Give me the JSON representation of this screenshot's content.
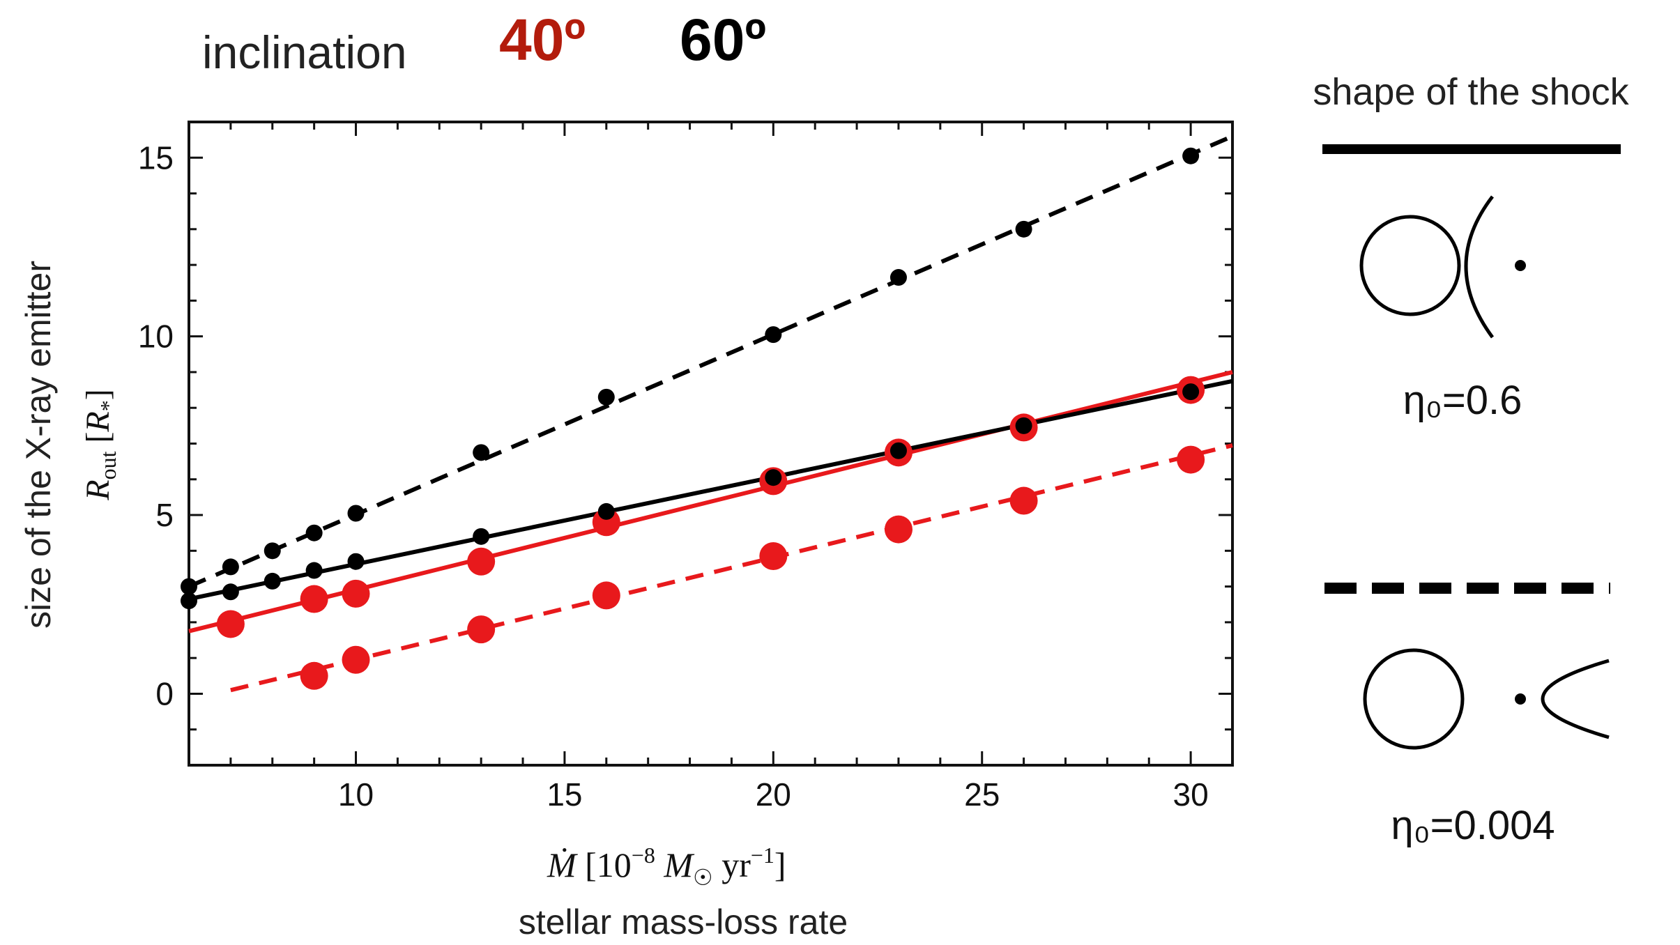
{
  "header": {
    "prefix": "inclination",
    "incl_a": "40º",
    "incl_b": "60º",
    "incl_a_color": "#b31c0c",
    "incl_b_color": "#000000"
  },
  "legend": {
    "title": "shape of the shock",
    "solid_label": "η₀=0.6",
    "dashed_label": "η₀=0.004"
  },
  "chart_data": {
    "type": "scatter",
    "xlabel_main": "Ṁ [10⁻⁸ M☉ yr⁻¹]",
    "xlabel_sub": "stellar mass-loss rate",
    "ylabel_main": "Rout [R*]",
    "ylabel_sub": "size of the X-ray emitter",
    "xlim": [
      6,
      31
    ],
    "ylim": [
      -2,
      16
    ],
    "xticks": [
      "10",
      "15",
      "20",
      "25",
      "30"
    ],
    "yticks": [
      "0",
      "5",
      "10",
      "15"
    ],
    "series": [
      {
        "inclination": "60º",
        "eta0": "η₀=0.004",
        "color": "#000000",
        "line_style": "dashed",
        "x": [
          6,
          7,
          8,
          9,
          10,
          13,
          16,
          20,
          23,
          26,
          30
        ],
        "y": [
          3.0,
          3.55,
          4.0,
          4.5,
          5.05,
          6.75,
          8.3,
          10.05,
          11.65,
          13.0,
          15.05
        ],
        "fit": [
          [
            6,
            3.0
          ],
          [
            31,
            15.6
          ]
        ]
      },
      {
        "inclination": "60º",
        "eta0": "η₀=0.6",
        "color": "#000000",
        "line_style": "solid",
        "x": [
          6,
          7,
          8,
          9,
          10,
          13,
          16,
          20,
          23,
          26,
          30
        ],
        "y": [
          2.6,
          2.85,
          3.15,
          3.45,
          3.7,
          4.4,
          5.1,
          6.05,
          6.8,
          7.5,
          8.45
        ],
        "fit": [
          [
            6,
            2.65
          ],
          [
            31,
            8.75
          ]
        ]
      },
      {
        "inclination": "40º",
        "eta0": "η₀=0.6",
        "color": "#e8191c",
        "line_style": "solid",
        "x": [
          7,
          9,
          10,
          13,
          16,
          20,
          23,
          26,
          30
        ],
        "y": [
          1.95,
          2.65,
          2.8,
          3.7,
          4.8,
          5.95,
          6.75,
          7.45,
          8.5
        ],
        "fit": [
          [
            6,
            1.75
          ],
          [
            31,
            9.0
          ]
        ]
      },
      {
        "inclination": "40º",
        "eta0": "η₀=0.004",
        "color": "#e8191c",
        "line_style": "dashed",
        "x": [
          9,
          10,
          13,
          16,
          20,
          23,
          26,
          30
        ],
        "y": [
          0.5,
          0.95,
          1.8,
          2.75,
          3.85,
          4.6,
          5.4,
          6.55
        ],
        "fit": [
          [
            7,
            0.1
          ],
          [
            31,
            6.95
          ]
        ]
      }
    ]
  }
}
